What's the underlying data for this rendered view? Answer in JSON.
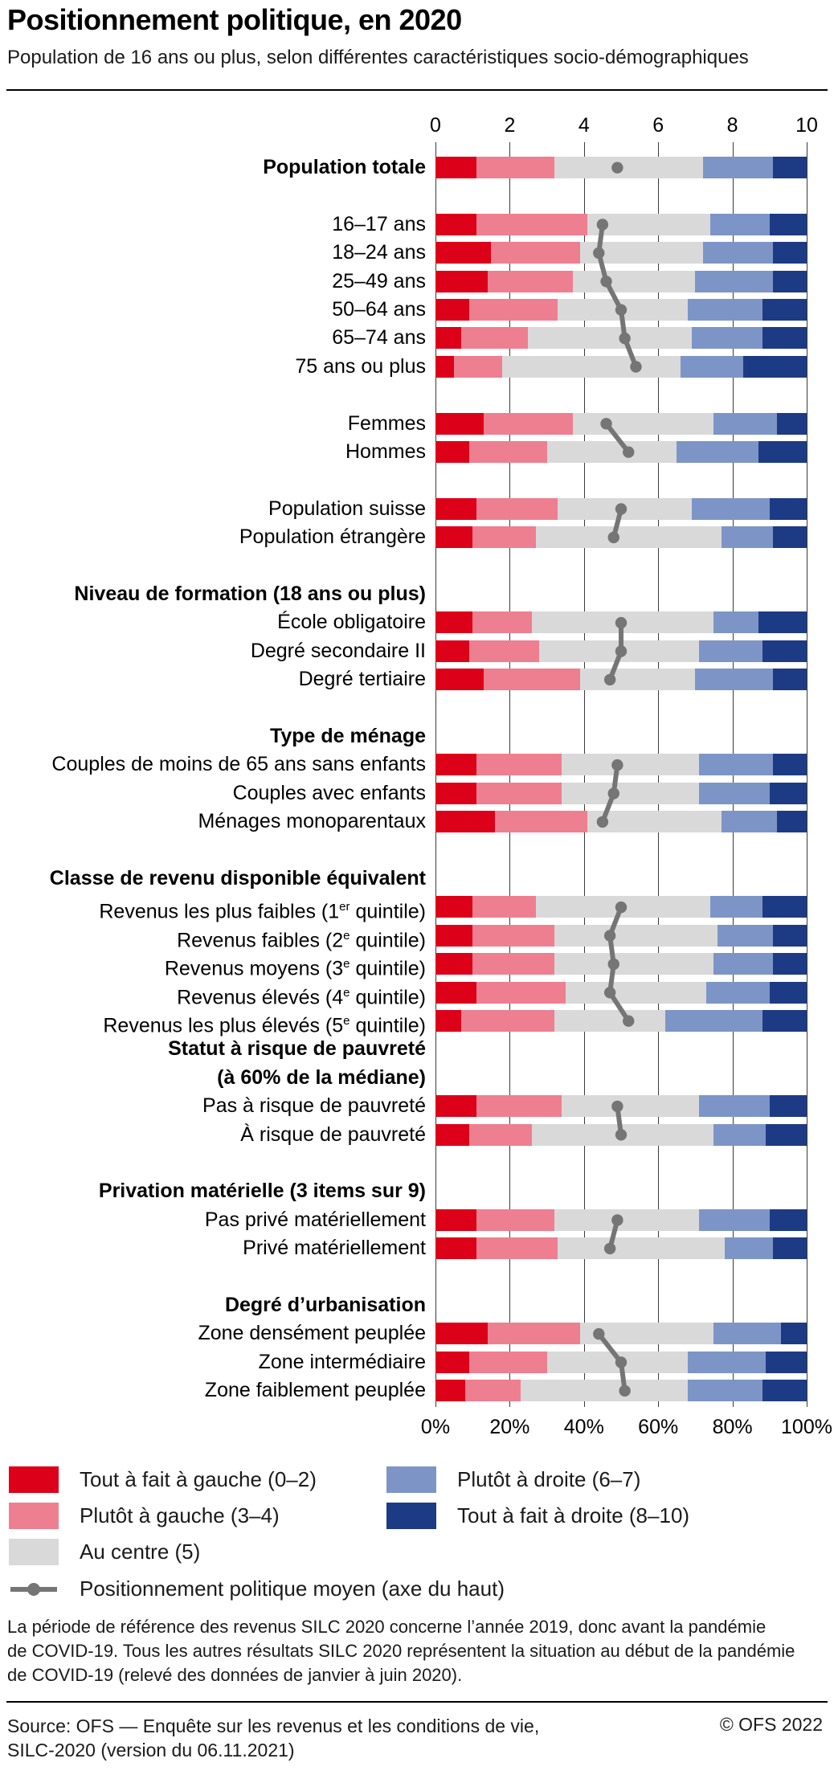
{
  "chart_data": {
    "type": "bar",
    "stacked": true,
    "orientation": "horizontal",
    "title": "Positionnement politique, en 2020",
    "subtitle": "Population de 16 ans ou plus, selon différentes caractéristiques socio-démographiques",
    "top_axis": {
      "ticks": [
        "0",
        "2",
        "4",
        "6",
        "8",
        "10"
      ],
      "range": [
        0,
        10
      ]
    },
    "bottom_axis": {
      "ticks": [
        "0%",
        "20%",
        "40%",
        "60%",
        "80%",
        "100%"
      ],
      "range": [
        0,
        100
      ]
    },
    "grid": true,
    "series": [
      "Tout à fait à gauche (0–2)",
      "Plutôt à gauche (3–4)",
      "Au centre (5)",
      "Plutôt à droite (6–7)",
      "Tout à fait à droite (8–10)"
    ],
    "mean_label": "Positionnement politique moyen (axe du haut)",
    "colors": {
      "far_left": "#dc0018",
      "left": "#ee7f90",
      "center": "#d9d9d9",
      "right": "#7d95c6",
      "far_right": "#1d3b84",
      "mean": "#757575"
    },
    "items": [
      {
        "type": "row",
        "label": "Population totale",
        "bold": true,
        "values": [
          11,
          21,
          40,
          19,
          9
        ],
        "mean": 4.9,
        "group": 0
      },
      {
        "type": "spacer"
      },
      {
        "type": "row",
        "label": "16–17 ans",
        "values": [
          11,
          30,
          33,
          16,
          10
        ],
        "mean": 4.5,
        "group": 1
      },
      {
        "type": "row",
        "label": "18–24 ans",
        "values": [
          15,
          24,
          33,
          19,
          9
        ],
        "mean": 4.4,
        "group": 1
      },
      {
        "type": "row",
        "label": "25–49 ans",
        "values": [
          14,
          23,
          33,
          21,
          9
        ],
        "mean": 4.6,
        "group": 1
      },
      {
        "type": "row",
        "label": "50–64 ans",
        "values": [
          9,
          24,
          35,
          20,
          12
        ],
        "mean": 5.0,
        "group": 1
      },
      {
        "type": "row",
        "label": "65–74 ans",
        "values": [
          7,
          18,
          44,
          19,
          12
        ],
        "mean": 5.1,
        "group": 1
      },
      {
        "type": "row",
        "label": "75 ans ou plus",
        "values": [
          5,
          13,
          48,
          17,
          17
        ],
        "mean": 5.4,
        "group": 1
      },
      {
        "type": "spacer"
      },
      {
        "type": "row",
        "label": "Femmes",
        "values": [
          13,
          24,
          38,
          17,
          8
        ],
        "mean": 4.6,
        "group": 2
      },
      {
        "type": "row",
        "label": "Hommes",
        "values": [
          9,
          21,
          35,
          22,
          13
        ],
        "mean": 5.2,
        "group": 2
      },
      {
        "type": "spacer"
      },
      {
        "type": "row",
        "label": "Population suisse",
        "values": [
          11,
          22,
          36,
          21,
          10
        ],
        "mean": 5.0,
        "group": 3
      },
      {
        "type": "row",
        "label": "Population étrangère",
        "values": [
          10,
          17,
          50,
          14,
          9
        ],
        "mean": 4.8,
        "group": 3
      },
      {
        "type": "spacer"
      },
      {
        "type": "header",
        "label": "Niveau de formation (18 ans ou plus)"
      },
      {
        "type": "row",
        "label": "École obligatoire",
        "values": [
          10,
          16,
          49,
          12,
          13
        ],
        "mean": 5.0,
        "group": 4
      },
      {
        "type": "row",
        "label": "Degré secondaire II",
        "values": [
          9,
          19,
          43,
          17,
          12
        ],
        "mean": 5.0,
        "group": 4
      },
      {
        "type": "row",
        "label": "Degré tertiaire",
        "values": [
          13,
          26,
          31,
          21,
          9
        ],
        "mean": 4.7,
        "group": 4
      },
      {
        "type": "spacer"
      },
      {
        "type": "header",
        "label": "Type de ménage"
      },
      {
        "type": "row",
        "label": "Couples de moins de 65 ans sans enfants",
        "values": [
          11,
          23,
          37,
          20,
          9
        ],
        "mean": 4.9,
        "group": 5
      },
      {
        "type": "row",
        "label": "Couples avec enfants",
        "values": [
          11,
          23,
          37,
          19,
          10
        ],
        "mean": 4.8,
        "group": 5
      },
      {
        "type": "row",
        "label": "Ménages monoparentaux",
        "values": [
          16,
          25,
          36,
          15,
          8
        ],
        "mean": 4.5,
        "group": 5
      },
      {
        "type": "spacer"
      },
      {
        "type": "header",
        "label": "Classe de revenu disponible équivalent"
      },
      {
        "type": "row",
        "label": "Revenus les plus faibles (1{er} quintile)",
        "values": [
          10,
          17,
          47,
          14,
          12
        ],
        "mean": 5.0,
        "group": 6
      },
      {
        "type": "row",
        "label": "Revenus faibles (2{e} quintile)",
        "values": [
          10,
          22,
          44,
          15,
          9
        ],
        "mean": 4.7,
        "group": 6
      },
      {
        "type": "row",
        "label": "Revenus moyens (3{e} quintile)",
        "values": [
          10,
          22,
          43,
          16,
          9
        ],
        "mean": 4.8,
        "group": 6
      },
      {
        "type": "row",
        "label": "Revenus élevés (4{e} quintile)",
        "values": [
          11,
          24,
          38,
          17,
          10
        ],
        "mean": 4.7,
        "group": 6
      },
      {
        "type": "row",
        "label": "Revenus les plus élevés (5{e} quintile)",
        "values": [
          7,
          25,
          30,
          26,
          12
        ],
        "mean": 5.2,
        "group": 6
      },
      {
        "type": "header",
        "label": "Statut à risque de pauvreté"
      },
      {
        "type": "header",
        "label": "(à 60% de la médiane)"
      },
      {
        "type": "row",
        "label": "Pas à risque de pauvreté",
        "values": [
          11,
          23,
          37,
          19,
          10
        ],
        "mean": 4.9,
        "group": 7
      },
      {
        "type": "row",
        "label": "À risque de pauvreté",
        "values": [
          9,
          17,
          49,
          14,
          11
        ],
        "mean": 5.0,
        "group": 7
      },
      {
        "type": "spacer"
      },
      {
        "type": "header",
        "label": "Privation matérielle (3 items sur 9)"
      },
      {
        "type": "row",
        "label": "Pas privé matériellement",
        "values": [
          11,
          21,
          39,
          19,
          10
        ],
        "mean": 4.9,
        "group": 8
      },
      {
        "type": "row",
        "label": "Privé matériellement",
        "values": [
          11,
          22,
          45,
          13,
          9
        ],
        "mean": 4.7,
        "group": 8
      },
      {
        "type": "spacer"
      },
      {
        "type": "header",
        "label": "Degré d’urbanisation"
      },
      {
        "type": "row",
        "label": "Zone densément peuplée",
        "values": [
          14,
          25,
          36,
          18,
          7
        ],
        "mean": 4.4,
        "group": 9
      },
      {
        "type": "row",
        "label": "Zone intermédiaire",
        "values": [
          9,
          21,
          38,
          21,
          11
        ],
        "mean": 5.0,
        "group": 9
      },
      {
        "type": "row",
        "label": "Zone faiblement peuplée",
        "values": [
          8,
          15,
          45,
          20,
          12
        ],
        "mean": 5.1,
        "group": 9
      }
    ]
  },
  "footnote": {
    "lines": [
      "La période de référence des revenus SILC 2020 concerne l’année 2019, donc avant la pandémie",
      "de COVID-19. Tous les autres résultats SILC 2020 représentent la situation au début de la pandémie",
      "de COVID-19 (relevé des données de janvier à juin 2020)."
    ]
  },
  "footer": {
    "source_line1": "Source: OFS — Enquête sur les revenus et les conditions de vie,",
    "source_line2": "SILC-2020 (version du 06.11.2021)",
    "copyright": "© OFS 2022"
  }
}
